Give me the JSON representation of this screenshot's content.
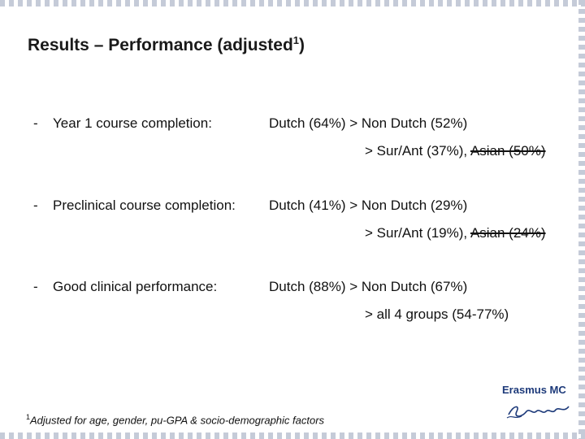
{
  "title": {
    "text": "Results – Performance (adjusted",
    "sup": "1",
    "close": ")"
  },
  "items": [
    {
      "dash": "-",
      "label": "Year 1 course completion:",
      "value": "Dutch (64%) > Non Dutch (52%)",
      "sub_prefix": "> Sur/Ant (37%), ",
      "sub_struck": "Asian (50%)"
    },
    {
      "dash": "-",
      "label": "Preclinical course completion:",
      "value": "Dutch (41%) > Non Dutch (29%)",
      "sub_prefix": "> Sur/Ant (19%), ",
      "sub_struck": "Asian (24%)"
    },
    {
      "dash": "-",
      "label": "Good clinical performance:",
      "value": "Dutch (88%) > Non Dutch (67%)",
      "sub_prefix": "> all 4 groups (54-77%)",
      "sub_struck": ""
    }
  ],
  "footnote": {
    "sup": "1",
    "text": "Adjusted for age, gender, pu-GPA & socio-demographic factors"
  },
  "logo": {
    "name": "Erasmus MC",
    "accent": "#1d3a7a"
  }
}
